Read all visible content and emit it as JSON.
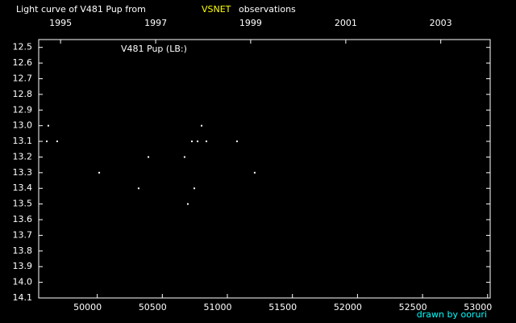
{
  "chart_data": {
    "type": "scatter",
    "title": "Light curve of V481 Pup from",
    "title_highlight": "VSNET",
    "title_end": "observations",
    "label": "V481 Pup (LB:)",
    "credit": "drawn by ooruri",
    "color": "#ffffff",
    "x": [
      49612,
      49624,
      49692,
      50015,
      50318,
      50393,
      50671,
      50696,
      50727,
      50746,
      50771,
      50802,
      50839,
      51074,
      51210
    ],
    "y": [
      13.1,
      13.0,
      13.1,
      13.3,
      13.4,
      13.2,
      13.2,
      13.5,
      13.1,
      13.4,
      13.1,
      13.0,
      13.1,
      13.1,
      13.3
    ],
    "xlim": [
      49550,
      53020
    ],
    "ylim": [
      14.1,
      12.45
    ],
    "xticks": [
      50000,
      50500,
      51000,
      51500,
      52000,
      52500,
      53000
    ],
    "x2ticks": [
      {
        "value": 49718,
        "label": "1995"
      },
      {
        "value": 50449,
        "label": "1997"
      },
      {
        "value": 51179,
        "label": "1999"
      },
      {
        "value": 51910,
        "label": "2001"
      },
      {
        "value": 52640,
        "label": "2003"
      }
    ],
    "yticks": [
      12.5,
      12.6,
      12.7,
      12.8,
      12.9,
      {
        "value": 13.0,
        "label": "13.0"
      },
      13.1,
      13.2,
      13.3,
      13.4,
      13.5,
      13.6,
      13.7,
      13.8,
      13.9,
      {
        "value": 14.0,
        "label": "14.0"
      },
      14.1
    ]
  }
}
